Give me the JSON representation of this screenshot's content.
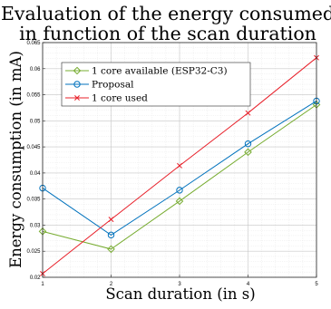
{
  "chart_data": {
    "type": "line",
    "title": [
      "Evaluation of the energy consumed",
      "in function of the scan duration"
    ],
    "xlabel": "Scan duration (in s)",
    "ylabel": "Energy consumption (in mA)",
    "x": [
      1,
      2,
      3,
      4,
      5
    ],
    "xlim": [
      1,
      5
    ],
    "ylim": [
      0.02,
      0.065
    ],
    "xticks": [
      "1",
      "2",
      "3",
      "4",
      "5"
    ],
    "yticks": [
      "0.02",
      "0.025",
      "0.03",
      "0.035",
      "0.04",
      "0.045",
      "0.05",
      "0.055",
      "0.06",
      "0.065"
    ],
    "grid": true,
    "legend_position": "top-left",
    "series": [
      {
        "name": "1 core available (ESP32-C3)",
        "color": "#77AC30",
        "marker": "diamond",
        "values": [
          0.0288,
          0.0254,
          0.0346,
          0.044,
          0.0531
        ]
      },
      {
        "name": "Proposal",
        "color": "#0072BD",
        "marker": "circle",
        "values": [
          0.0371,
          0.0281,
          0.0367,
          0.0456,
          0.0538
        ]
      },
      {
        "name": "1 core used",
        "color": "#E8202A",
        "marker": "x",
        "values": [
          0.0207,
          0.0311,
          0.0414,
          0.0515,
          0.0621
        ]
      }
    ]
  }
}
